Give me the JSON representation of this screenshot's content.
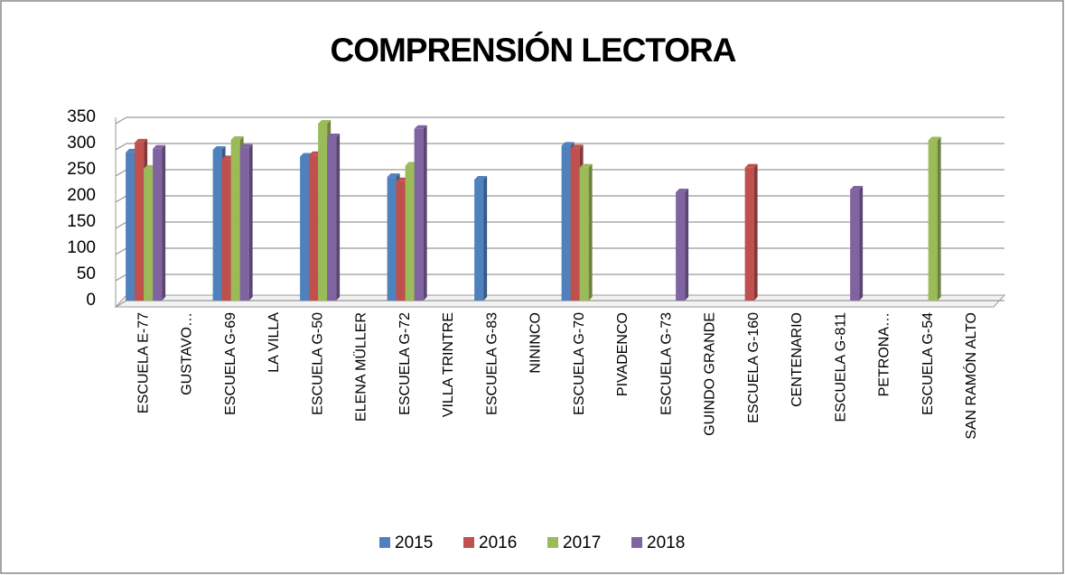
{
  "chart_data": {
    "type": "bar",
    "title": "COMPRENSIÓN LECTORA",
    "categories": [
      "ESCUELA E-77",
      "GUSTAVO…",
      "ESCUELA G-69",
      "LA VILLA",
      "ESCUELA G-50",
      "ELENA MÜLLER",
      "ESCUELA G-72",
      "VILLA TRINTRE",
      "ESCUELA G-83",
      "NININCO",
      "ESCUELA G-70",
      "PIVADENCO",
      "ESCUELA G-73",
      "GUINDO GRANDE",
      "ESCUELA G-160",
      "CENTENARIO",
      "ESCUELA G-811",
      "PETRONA…",
      "ESCUELA G-54",
      "SAN RAMÓN ALTO"
    ],
    "series": [
      {
        "name": "2015",
        "color": "#4f81bd",
        "values": [
          283,
          null,
          288,
          null,
          275,
          null,
          236,
          null,
          231,
          null,
          296,
          null,
          null,
          null,
          null,
          null,
          null,
          null,
          null,
          null
        ]
      },
      {
        "name": "2016",
        "color": "#c0504d",
        "values": [
          302,
          null,
          270,
          null,
          278,
          null,
          228,
          null,
          null,
          null,
          291,
          null,
          null,
          null,
          254,
          null,
          null,
          null,
          null,
          null
        ]
      },
      {
        "name": "2017",
        "color": "#9bbb59",
        "values": [
          252,
          null,
          307,
          null,
          338,
          null,
          258,
          null,
          null,
          null,
          254,
          null,
          null,
          null,
          null,
          null,
          null,
          null,
          306,
          null
        ]
      },
      {
        "name": "2018",
        "color": "#8064a2",
        "values": [
          290,
          null,
          292,
          null,
          312,
          null,
          328,
          null,
          null,
          null,
          null,
          null,
          207,
          null,
          null,
          null,
          212,
          null,
          null,
          null
        ]
      }
    ],
    "ylim": [
      0,
      350
    ],
    "yticks": [
      0,
      50,
      100,
      150,
      200,
      250,
      300,
      350
    ],
    "grid": true,
    "legend": "bottom"
  }
}
